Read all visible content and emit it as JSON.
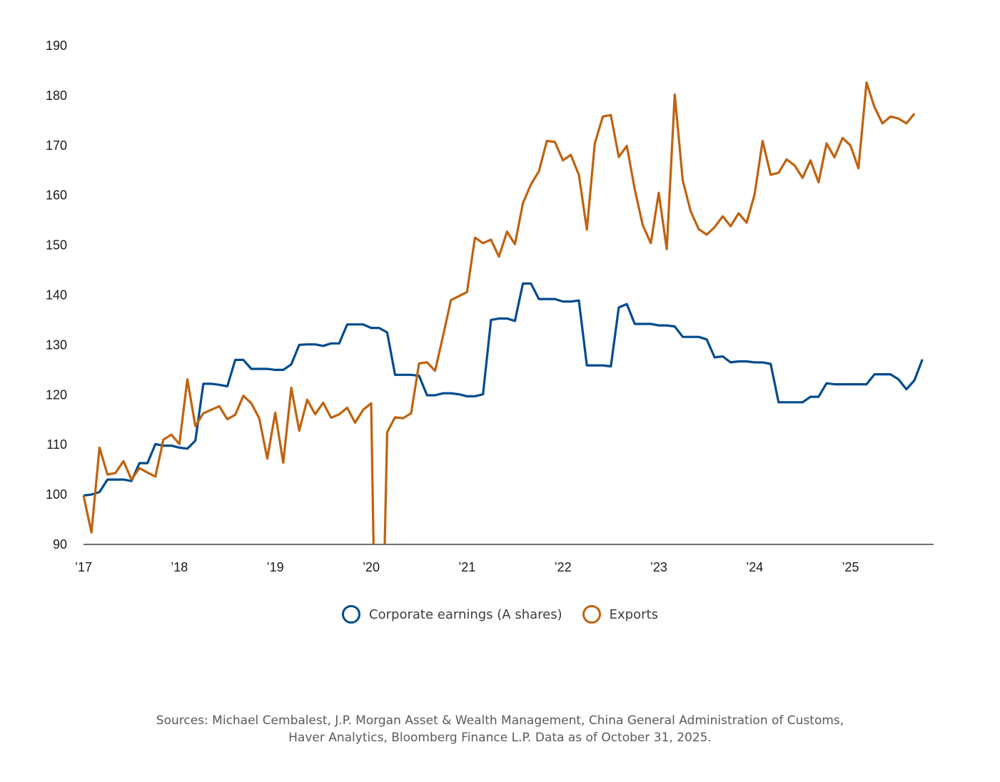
{
  "chart_data": {
    "type": "line",
    "title": "",
    "xlabel": "",
    "ylabel": "",
    "ylim": [
      90,
      190
    ],
    "yticks": [
      90,
      100,
      110,
      120,
      130,
      140,
      150,
      160,
      170,
      180,
      190
    ],
    "xlim": [
      2017.0,
      2025.867
    ],
    "xticks": [
      {
        "value": 2017,
        "label": "’17"
      },
      {
        "value": 2018,
        "label": "’18"
      },
      {
        "value": 2019,
        "label": "’19"
      },
      {
        "value": 2020,
        "label": "’20"
      },
      {
        "value": 2021,
        "label": "’21"
      },
      {
        "value": 2022,
        "label": "’22"
      },
      {
        "value": 2023,
        "label": "’23"
      },
      {
        "value": 2024,
        "label": "’24"
      },
      {
        "value": 2025,
        "label": "’25"
      }
    ],
    "grid": false,
    "legend_position": "bottom-center",
    "series": [
      {
        "name": "Corporate earnings (A shares)",
        "color": "#004b8d",
        "points": [
          [
            2017.0,
            99.8
          ],
          [
            2017.083,
            100.0
          ],
          [
            2017.167,
            100.5
          ],
          [
            2017.25,
            103.0
          ],
          [
            2017.333,
            103.0
          ],
          [
            2017.417,
            103.0
          ],
          [
            2017.5,
            102.7
          ],
          [
            2017.583,
            106.3
          ],
          [
            2017.667,
            106.3
          ],
          [
            2017.75,
            110.1
          ],
          [
            2017.833,
            109.8
          ],
          [
            2017.917,
            109.8
          ],
          [
            2018.0,
            109.4
          ],
          [
            2018.083,
            109.2
          ],
          [
            2018.167,
            110.8
          ],
          [
            2018.25,
            122.2
          ],
          [
            2018.333,
            122.2
          ],
          [
            2018.417,
            122.0
          ],
          [
            2018.5,
            121.7
          ],
          [
            2018.583,
            127.0
          ],
          [
            2018.667,
            127.0
          ],
          [
            2018.75,
            125.2
          ],
          [
            2018.833,
            125.2
          ],
          [
            2018.917,
            125.2
          ],
          [
            2019.0,
            125.0
          ],
          [
            2019.083,
            125.0
          ],
          [
            2019.167,
            126.1
          ],
          [
            2019.25,
            130.0
          ],
          [
            2019.333,
            130.1
          ],
          [
            2019.417,
            130.1
          ],
          [
            2019.5,
            129.8
          ],
          [
            2019.583,
            130.3
          ],
          [
            2019.667,
            130.3
          ],
          [
            2019.75,
            134.1
          ],
          [
            2019.833,
            134.1
          ],
          [
            2019.917,
            134.1
          ],
          [
            2020.0,
            133.4
          ],
          [
            2020.083,
            133.4
          ],
          [
            2020.167,
            132.5
          ],
          [
            2020.25,
            124.0
          ],
          [
            2020.333,
            124.0
          ],
          [
            2020.417,
            124.0
          ],
          [
            2020.5,
            123.8
          ],
          [
            2020.583,
            119.9
          ],
          [
            2020.667,
            119.9
          ],
          [
            2020.75,
            120.3
          ],
          [
            2020.833,
            120.3
          ],
          [
            2020.917,
            120.1
          ],
          [
            2021.0,
            119.7
          ],
          [
            2021.083,
            119.7
          ],
          [
            2021.167,
            120.1
          ],
          [
            2021.25,
            135.0
          ],
          [
            2021.333,
            135.3
          ],
          [
            2021.417,
            135.3
          ],
          [
            2021.5,
            134.8
          ],
          [
            2021.583,
            142.3
          ],
          [
            2021.667,
            142.3
          ],
          [
            2021.75,
            139.2
          ],
          [
            2021.833,
            139.2
          ],
          [
            2021.917,
            139.2
          ],
          [
            2022.0,
            138.7
          ],
          [
            2022.083,
            138.7
          ],
          [
            2022.167,
            138.9
          ],
          [
            2022.25,
            125.9
          ],
          [
            2022.333,
            125.9
          ],
          [
            2022.417,
            125.9
          ],
          [
            2022.5,
            125.7
          ],
          [
            2022.583,
            137.5
          ],
          [
            2022.667,
            138.2
          ],
          [
            2022.75,
            134.2
          ],
          [
            2022.833,
            134.2
          ],
          [
            2022.917,
            134.2
          ],
          [
            2023.0,
            133.9
          ],
          [
            2023.083,
            133.9
          ],
          [
            2023.167,
            133.7
          ],
          [
            2023.25,
            131.6
          ],
          [
            2023.333,
            131.6
          ],
          [
            2023.417,
            131.6
          ],
          [
            2023.5,
            131.1
          ],
          [
            2023.583,
            127.5
          ],
          [
            2023.667,
            127.7
          ],
          [
            2023.75,
            126.5
          ],
          [
            2023.833,
            126.7
          ],
          [
            2023.917,
            126.7
          ],
          [
            2024.0,
            126.5
          ],
          [
            2024.083,
            126.5
          ],
          [
            2024.167,
            126.2
          ],
          [
            2024.25,
            118.5
          ],
          [
            2024.333,
            118.5
          ],
          [
            2024.417,
            118.5
          ],
          [
            2024.5,
            118.5
          ],
          [
            2024.583,
            119.6
          ],
          [
            2024.667,
            119.6
          ],
          [
            2024.75,
            122.3
          ],
          [
            2024.833,
            122.1
          ],
          [
            2024.917,
            122.1
          ],
          [
            2025.0,
            122.1
          ],
          [
            2025.083,
            122.1
          ],
          [
            2025.167,
            122.1
          ],
          [
            2025.25,
            124.1
          ],
          [
            2025.333,
            124.1
          ],
          [
            2025.417,
            124.1
          ],
          [
            2025.5,
            123.1
          ],
          [
            2025.583,
            121.1
          ],
          [
            2025.667,
            122.9
          ],
          [
            2025.75,
            127.1
          ]
        ]
      },
      {
        "name": "Exports",
        "color": "#c0620e",
        "points": [
          [
            2017.0,
            99.8
          ],
          [
            2017.083,
            92.4
          ],
          [
            2017.167,
            109.4
          ],
          [
            2017.25,
            104.0
          ],
          [
            2017.333,
            104.3
          ],
          [
            2017.417,
            106.7
          ],
          [
            2017.5,
            103.0
          ],
          [
            2017.583,
            105.3
          ],
          [
            2017.667,
            104.4
          ],
          [
            2017.75,
            103.6
          ],
          [
            2017.833,
            111.0
          ],
          [
            2017.917,
            112.0
          ],
          [
            2018.0,
            110.1
          ],
          [
            2018.083,
            123.1
          ],
          [
            2018.167,
            113.7
          ],
          [
            2018.25,
            116.3
          ],
          [
            2018.333,
            117.0
          ],
          [
            2018.417,
            117.7
          ],
          [
            2018.5,
            115.1
          ],
          [
            2018.583,
            116.0
          ],
          [
            2018.667,
            119.8
          ],
          [
            2018.75,
            118.3
          ],
          [
            2018.833,
            115.3
          ],
          [
            2018.917,
            107.2
          ],
          [
            2019.0,
            116.4
          ],
          [
            2019.083,
            106.4
          ],
          [
            2019.167,
            121.4
          ],
          [
            2019.25,
            112.8
          ],
          [
            2019.333,
            119.0
          ],
          [
            2019.417,
            116.1
          ],
          [
            2019.5,
            118.4
          ],
          [
            2019.583,
            115.4
          ],
          [
            2019.667,
            116.1
          ],
          [
            2019.75,
            117.4
          ],
          [
            2019.833,
            114.4
          ],
          [
            2019.917,
            117.0
          ],
          [
            2020.0,
            118.3
          ],
          [
            2020.025,
            90.0
          ],
          null,
          [
            2020.142,
            90.0
          ],
          [
            2020.167,
            112.5
          ],
          [
            2020.25,
            115.5
          ],
          [
            2020.333,
            115.3
          ],
          [
            2020.417,
            116.3
          ],
          [
            2020.5,
            126.3
          ],
          [
            2020.583,
            126.5
          ],
          [
            2020.667,
            124.8
          ],
          [
            2020.75,
            131.8
          ],
          [
            2020.833,
            139.0
          ],
          [
            2020.917,
            139.8
          ],
          [
            2021.0,
            140.6
          ],
          [
            2021.083,
            151.5
          ],
          [
            2021.167,
            150.4
          ],
          [
            2021.25,
            151.1
          ],
          [
            2021.333,
            147.7
          ],
          [
            2021.417,
            152.7
          ],
          [
            2021.5,
            150.2
          ],
          [
            2021.583,
            158.4
          ],
          [
            2021.667,
            162.2
          ],
          [
            2021.75,
            164.8
          ],
          [
            2021.833,
            170.9
          ],
          [
            2021.917,
            170.7
          ],
          [
            2022.0,
            167.0
          ],
          [
            2022.083,
            168.1
          ],
          [
            2022.167,
            164.1
          ],
          [
            2022.25,
            153.1
          ],
          [
            2022.333,
            170.4
          ],
          [
            2022.417,
            175.8
          ],
          [
            2022.5,
            176.1
          ],
          [
            2022.583,
            167.7
          ],
          [
            2022.667,
            169.9
          ],
          [
            2022.75,
            161.2
          ],
          [
            2022.833,
            154.0
          ],
          [
            2022.917,
            150.4
          ],
          [
            2023.0,
            160.5
          ],
          [
            2023.083,
            149.2
          ],
          [
            2023.167,
            180.2
          ],
          [
            2023.25,
            163.0
          ],
          [
            2023.333,
            156.8
          ],
          [
            2023.417,
            153.2
          ],
          [
            2023.5,
            152.1
          ],
          [
            2023.583,
            153.6
          ],
          [
            2023.667,
            155.8
          ],
          [
            2023.75,
            153.8
          ],
          [
            2023.833,
            156.4
          ],
          [
            2023.917,
            154.5
          ],
          [
            2024.0,
            160.2
          ],
          [
            2024.083,
            170.9
          ],
          [
            2024.167,
            164.1
          ],
          [
            2024.25,
            164.5
          ],
          [
            2024.333,
            167.2
          ],
          [
            2024.417,
            166.0
          ],
          [
            2024.5,
            163.5
          ],
          [
            2024.583,
            167.0
          ],
          [
            2024.667,
            162.6
          ],
          [
            2024.75,
            170.4
          ],
          [
            2024.833,
            167.6
          ],
          [
            2024.917,
            171.5
          ],
          [
            2025.0,
            170.0
          ],
          [
            2025.083,
            165.4
          ],
          [
            2025.167,
            182.6
          ],
          [
            2025.25,
            177.7
          ],
          [
            2025.333,
            174.4
          ],
          [
            2025.417,
            175.8
          ],
          [
            2025.5,
            175.4
          ],
          [
            2025.583,
            174.4
          ],
          [
            2025.667,
            176.4
          ]
        ]
      }
    ]
  },
  "legend": {
    "items": [
      {
        "label": "Corporate earnings (A shares)",
        "color": "#004b8d"
      },
      {
        "label": "Exports",
        "color": "#c0620e"
      }
    ]
  },
  "source": {
    "line1": "Sources: Michael Cembalest, J.P. Morgan Asset & Wealth Management, China General Administration of Customs,",
    "line2": "Haver Analytics, Bloomberg Finance L.P. Data as of October 31, 2025."
  }
}
